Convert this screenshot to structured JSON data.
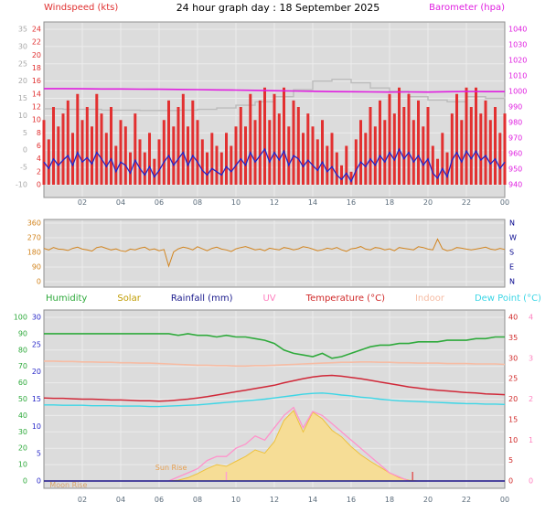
{
  "title": "24 hour graph day : 18 September 2025",
  "labels": {
    "windspeed": "Windspeed (kts)",
    "barometer": "Barometer (hpa)"
  },
  "x_axis": {
    "hours": [
      2,
      4,
      6,
      8,
      10,
      12,
      14,
      16,
      18,
      20,
      22,
      24
    ],
    "labels": [
      "02",
      "04",
      "06",
      "08",
      "10",
      "12",
      "14",
      "16",
      "18",
      "20",
      "22",
      "00"
    ]
  },
  "legend": [
    {
      "label": "Humidity",
      "color": "#2faa3c"
    },
    {
      "label": "Solar",
      "color": "#c09c00"
    },
    {
      "label": "Rainfall (mm)",
      "color": "#1a1a8c"
    },
    {
      "label": "UV",
      "color": "#ff7fbf"
    },
    {
      "label": "Temperature (°C)",
      "color": "#d02828"
    },
    {
      "label": "Indoor",
      "color": "#f6bca4"
    },
    {
      "label": "Dew Point (°C)",
      "color": "#3cd6e6"
    }
  ],
  "chart_data": [
    {
      "name": "wind-and-barometer",
      "type": "line",
      "plot_bg": "#dcdcdc",
      "axes": {
        "wind": {
          "range": [
            0,
            24
          ],
          "ticks": [
            0,
            2,
            4,
            6,
            8,
            10,
            12,
            14,
            16,
            18,
            20,
            22,
            24
          ],
          "color": "#e03030"
        },
        "gray": {
          "range": [
            -10,
            35
          ],
          "ticks": [
            -10,
            -5,
            0,
            5,
            10,
            15,
            20,
            25,
            30,
            35
          ],
          "color": "#a8a8a8"
        },
        "baro": {
          "range": [
            940,
            1040
          ],
          "ticks": [
            940,
            950,
            960,
            970,
            980,
            990,
            1000,
            1010,
            1020,
            1030,
            1040
          ],
          "color": "#e020e0"
        }
      },
      "series": [
        {
          "name": "gray-trace",
          "axis": "gray",
          "style": "step",
          "color": "#bcbcbc",
          "width": 1.4,
          "values": [
            12,
            11.8,
            11.8,
            11.6,
            11.6,
            11.5,
            11.5,
            11.6,
            11.8,
            12.2,
            13,
            14,
            15.5,
            17.5,
            20,
            20.5,
            19.5,
            18,
            17,
            15.5,
            14.5,
            14,
            15.5,
            15,
            15.5
          ]
        },
        {
          "name": "wind-gust",
          "axis": "wind",
          "style": "bars",
          "color": "#e23030",
          "width": 3,
          "values": [
            10,
            7,
            12,
            9,
            11,
            13,
            8,
            14,
            10,
            12,
            9,
            14,
            11,
            8,
            12,
            6,
            10,
            9,
            5,
            11,
            7,
            5,
            8,
            4,
            7,
            10,
            13,
            9,
            12,
            14,
            9,
            13,
            10,
            7,
            5,
            8,
            6,
            5,
            8,
            6,
            9,
            12,
            9,
            14,
            10,
            13,
            15,
            10,
            14,
            11,
            15,
            9,
            13,
            12,
            8,
            11,
            9,
            7,
            10,
            6,
            8,
            5,
            3,
            6,
            2,
            7,
            10,
            8,
            12,
            9,
            13,
            10,
            14,
            11,
            15,
            12,
            14,
            10,
            13,
            9,
            12,
            6,
            4,
            8,
            5,
            11,
            14,
            10,
            15,
            12,
            15,
            11,
            13,
            10,
            12,
            8,
            11
          ]
        },
        {
          "name": "wind-average",
          "axis": "wind",
          "style": "line",
          "color": "#2424c8",
          "width": 1.3,
          "values": [
            3.5,
            2.5,
            4,
            3,
            3.8,
            4.5,
            3,
            5,
            3.5,
            4.2,
            3.2,
            5,
            4,
            2.8,
            4,
            2,
            3.5,
            3,
            1.8,
            3.8,
            2.5,
            1.5,
            2.8,
            1.2,
            2.2,
            3.5,
            4.5,
            3,
            4,
            5,
            3,
            4.5,
            3.5,
            2.2,
            1.5,
            2.5,
            2,
            1.5,
            2.8,
            2,
            3,
            4,
            3,
            5,
            3.5,
            4.5,
            5.5,
            3.5,
            5,
            3.8,
            5.2,
            3,
            4.5,
            4,
            2.8,
            3.8,
            3,
            2.2,
            3.5,
            2,
            2.8,
            1.5,
            0.8,
            1.8,
            0.5,
            2.2,
            3.5,
            2.8,
            4,
            3,
            4.5,
            3.5,
            5,
            3.8,
            5.5,
            4,
            5,
            3.5,
            4.5,
            3,
            4,
            1.8,
            1,
            2.5,
            1.2,
            3.8,
            5,
            3.5,
            5.2,
            4,
            5.2,
            3.8,
            4.5,
            3.2,
            4,
            2.5,
            3.5
          ]
        },
        {
          "name": "barometer",
          "axis": "baro",
          "style": "line",
          "color": "#e020e0",
          "width": 1.6,
          "values": [
            1001.8,
            1001.8,
            1001.7,
            1001.6,
            1001.6,
            1001.5,
            1001.4,
            1001.3,
            1001.2,
            1001.0,
            1000.9,
            1000.7,
            1000.5,
            1000.3,
            1000.1,
            999.9,
            999.8,
            999.7,
            999.6,
            999.7,
            999.6,
            999.8,
            1000.0,
            999.9,
            999.9
          ]
        }
      ]
    },
    {
      "name": "wind-direction",
      "type": "line",
      "plot_bg": "#dcdcdc",
      "axes": {
        "dir": {
          "range": [
            0,
            360
          ],
          "ticks": [
            0,
            90,
            180,
            270,
            360
          ],
          "color": "#d2841e"
        },
        "compass": {
          "range": [
            0,
            360
          ],
          "ticks": [
            0,
            90,
            180,
            270,
            360
          ],
          "labels": [
            "N",
            "E",
            "S",
            "W",
            "N"
          ],
          "color": "#00008b"
        }
      },
      "series": [
        {
          "name": "wind-direction",
          "axis": "dir",
          "style": "line",
          "color": "#d2841e",
          "width": 1,
          "values": [
            205,
            195,
            210,
            200,
            198,
            192,
            205,
            212,
            200,
            195,
            188,
            210,
            215,
            205,
            195,
            202,
            190,
            185,
            200,
            196,
            206,
            212,
            196,
            202,
            190,
            198,
            95,
            182,
            202,
            212,
            206,
            196,
            215,
            202,
            190,
            205,
            212,
            200,
            195,
            185,
            202,
            210,
            216,
            206,
            196,
            200,
            190,
            206,
            200,
            196,
            210,
            205,
            196,
            202,
            215,
            210,
            200,
            190,
            196,
            206,
            200,
            210,
            196,
            186,
            202,
            206,
            216,
            200,
            196,
            210,
            206,
            196,
            202,
            190,
            210,
            205,
            200,
            196,
            215,
            210,
            200,
            196,
            262,
            202,
            190,
            196,
            210,
            206,
            200,
            196,
            200,
            206,
            212,
            200,
            196,
            205,
            198
          ]
        }
      ]
    },
    {
      "name": "climate",
      "type": "line",
      "plot_bg": "#dcdcdc",
      "axes": {
        "humidity": {
          "range": [
            0,
            100
          ],
          "ticks": [
            0,
            10,
            20,
            30,
            40,
            50,
            60,
            70,
            80,
            90,
            100
          ],
          "color": "#2faa3c"
        },
        "rain": {
          "range": [
            0,
            30
          ],
          "ticks": [
            0,
            5,
            10,
            15,
            20,
            25,
            30
          ],
          "color": "#2828c8"
        },
        "temp": {
          "range": [
            0,
            40
          ],
          "ticks": [
            0,
            5,
            10,
            15,
            20,
            25,
            30,
            35,
            40
          ],
          "color": "#d02828"
        },
        "uv": {
          "range": [
            0,
            4
          ],
          "ticks": [
            0,
            1,
            2,
            3,
            4
          ],
          "color": "#ff7fbf"
        },
        "solar": {
          "range": [
            0,
            1000
          ],
          "ticks": [],
          "color": "#e8b84b"
        }
      },
      "series": [
        {
          "name": "solar",
          "axis": "solar",
          "style": "area",
          "color": "#eec23c",
          "fill": "#f6dd96",
          "values": [
            0,
            0,
            0,
            0,
            0,
            0,
            0,
            0,
            0,
            0,
            0,
            0,
            0,
            0,
            5,
            20,
            45,
            75,
            100,
            90,
            120,
            150,
            190,
            170,
            240,
            370,
            430,
            300,
            420,
            380,
            310,
            270,
            210,
            160,
            120,
            85,
            50,
            20,
            5,
            0,
            0,
            0,
            0,
            0,
            0,
            0,
            0,
            0,
            0
          ]
        },
        {
          "name": "uv",
          "axis": "uv",
          "style": "line",
          "color": "#ff93cb",
          "width": 1.3,
          "values": [
            0,
            0,
            0,
            0,
            0,
            0,
            0,
            0,
            0,
            0,
            0,
            0,
            0,
            0,
            0.1,
            0.2,
            0.3,
            0.5,
            0.6,
            0.6,
            0.8,
            0.9,
            1.1,
            1.0,
            1.3,
            1.6,
            1.8,
            1.3,
            1.7,
            1.6,
            1.4,
            1.2,
            1.0,
            0.8,
            0.6,
            0.4,
            0.2,
            0.1,
            0,
            0,
            0,
            0,
            0,
            0,
            0,
            0,
            0,
            0,
            0
          ]
        },
        {
          "name": "rainfall",
          "axis": "rain",
          "style": "line",
          "color": "#1a1a8c",
          "width": 1.5,
          "values": [
            0,
            0,
            0,
            0,
            0,
            0,
            0,
            0,
            0,
            0,
            0,
            0,
            0,
            0,
            0,
            0,
            0,
            0,
            0,
            0,
            0,
            0,
            0,
            0,
            0,
            0,
            0,
            0,
            0,
            0,
            0,
            0,
            0,
            0,
            0,
            0,
            0,
            0,
            0,
            0,
            0,
            0,
            0,
            0,
            0,
            0,
            0,
            0,
            0
          ]
        },
        {
          "name": "indoor",
          "axis": "temp",
          "style": "line",
          "color": "#f6bca4",
          "width": 1.6,
          "values": [
            29.3,
            29.3,
            29.2,
            29.2,
            29.1,
            29.1,
            29.0,
            29.0,
            28.9,
            28.9,
            28.8,
            28.8,
            28.7,
            28.6,
            28.5,
            28.4,
            28.3,
            28.3,
            28.2,
            28.2,
            28.1,
            28.1,
            28.2,
            28.2,
            28.3,
            28.4,
            28.5,
            28.6,
            28.7,
            28.8,
            28.9,
            29.0,
            29.0,
            29.1,
            29.1,
            29.0,
            29.0,
            28.9,
            28.9,
            28.8,
            28.8,
            28.8,
            28.7,
            28.7,
            28.7,
            28.6,
            28.6,
            28.6,
            28.5
          ]
        },
        {
          "name": "dew-point",
          "axis": "temp",
          "style": "line",
          "color": "#3cd6e6",
          "width": 1.4,
          "values": [
            18.6,
            18.6,
            18.5,
            18.5,
            18.5,
            18.4,
            18.4,
            18.4,
            18.3,
            18.3,
            18.3,
            18.2,
            18.2,
            18.3,
            18.4,
            18.5,
            18.6,
            18.8,
            19.0,
            19.2,
            19.4,
            19.6,
            19.8,
            20.0,
            20.3,
            20.6,
            20.9,
            21.2,
            21.4,
            21.5,
            21.3,
            21.0,
            20.8,
            20.5,
            20.3,
            20.0,
            19.8,
            19.6,
            19.5,
            19.4,
            19.3,
            19.2,
            19.1,
            19.0,
            18.9,
            18.9,
            18.8,
            18.8,
            18.7
          ]
        },
        {
          "name": "temperature",
          "axis": "temp",
          "style": "line",
          "color": "#d02838",
          "width": 1.5,
          "values": [
            20.3,
            20.2,
            20.2,
            20.1,
            20.0,
            20.0,
            19.9,
            19.8,
            19.8,
            19.7,
            19.6,
            19.6,
            19.5,
            19.6,
            19.8,
            20.0,
            20.3,
            20.6,
            21.0,
            21.4,
            21.8,
            22.2,
            22.6,
            23.0,
            23.4,
            24.0,
            24.5,
            25.0,
            25.4,
            25.7,
            25.8,
            25.6,
            25.3,
            25.0,
            24.6,
            24.2,
            23.8,
            23.4,
            23.0,
            22.7,
            22.4,
            22.2,
            22.0,
            21.8,
            21.6,
            21.5,
            21.3,
            21.2,
            21.1
          ]
        },
        {
          "name": "humidity",
          "axis": "humidity",
          "style": "line",
          "color": "#2faa3c",
          "width": 1.6,
          "values": [
            90,
            90,
            90,
            90,
            90,
            90,
            90,
            90,
            90,
            90,
            90,
            90,
            90,
            90,
            89,
            90,
            89,
            89,
            88,
            89,
            88,
            88,
            87,
            86,
            84,
            80,
            78,
            77,
            76,
            78,
            75,
            76,
            78,
            80,
            82,
            83,
            83,
            84,
            84,
            85,
            85,
            85,
            86,
            86,
            86,
            87,
            87,
            88,
            88
          ]
        }
      ],
      "annotations": [
        {
          "name": "sunrise-label",
          "text": "Sun Rise",
          "hour": 5.8,
          "pos": "upper",
          "color": "#e8a050"
        },
        {
          "name": "moonrise-label",
          "text": "Moon Rise",
          "hour": 0.3,
          "pos": "lower",
          "color": "#d8a06a"
        },
        {
          "name": "sunset-marker",
          "type": "tick",
          "hour": 19.2,
          "color": "#e05858"
        },
        {
          "name": "pink-marker",
          "type": "tick",
          "hour": 9.5,
          "color": "#ff9fd0"
        }
      ]
    }
  ]
}
